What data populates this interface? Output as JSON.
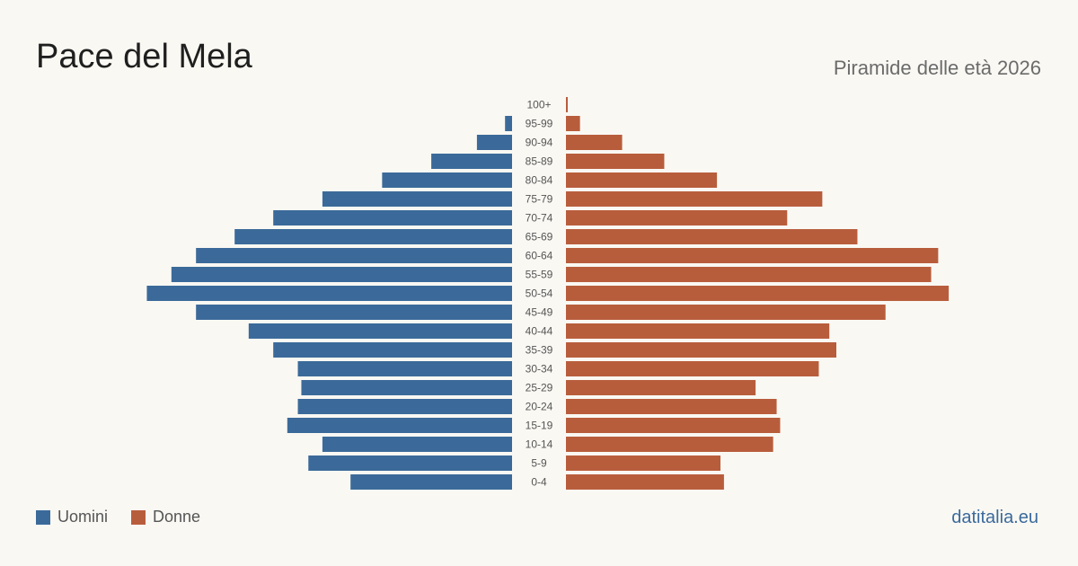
{
  "header": {
    "title": "Pace del Mela",
    "subtitle": "Piramide delle età 2026"
  },
  "legend": {
    "men_label": "Uomini",
    "women_label": "Donne"
  },
  "footer": {
    "source": "datitalia.eu"
  },
  "colors": {
    "men": "#3b6a9a",
    "women": "#b85d3c",
    "background": "#faf8f3"
  },
  "chart_data": {
    "type": "bar",
    "orientation": "horizontal-pyramid",
    "categories": [
      "100+",
      "95-99",
      "90-94",
      "85-89",
      "80-84",
      "75-79",
      "70-74",
      "65-69",
      "60-64",
      "55-59",
      "50-54",
      "45-49",
      "40-44",
      "35-39",
      "30-34",
      "25-29",
      "20-24",
      "15-19",
      "10-14",
      "5-9",
      "0-4"
    ],
    "series": [
      {
        "name": "Uomini",
        "values": [
          0,
          2,
          10,
          23,
          37,
          54,
          68,
          79,
          90,
          97,
          104,
          90,
          75,
          68,
          61,
          60,
          61,
          64,
          54,
          58,
          46
        ]
      },
      {
        "name": "Donne",
        "values": [
          0.5,
          4,
          16,
          28,
          43,
          73,
          63,
          83,
          106,
          104,
          109,
          91,
          75,
          77,
          72,
          54,
          60,
          61,
          59,
          44,
          45
        ]
      }
    ],
    "xlim": [
      0,
      110
    ],
    "grid": false,
    "legend_position": "bottom-left"
  }
}
